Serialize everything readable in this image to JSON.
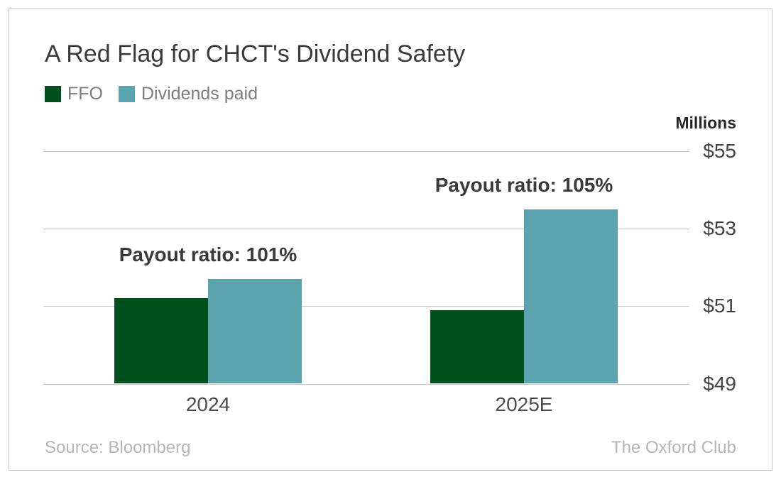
{
  "title": "A Red Flag for CHCT's Dividend Safety",
  "legend": {
    "items": [
      {
        "label": "FFO",
        "color": "#00501e"
      },
      {
        "label": "Dividends paid",
        "color": "#5ba4ad"
      }
    ]
  },
  "axis": {
    "unit_label": "Millions",
    "tick_labels": [
      "$55",
      "$53",
      "$51",
      "$49"
    ],
    "tick_values": [
      55,
      53,
      51,
      49
    ]
  },
  "footer": {
    "source": "Source: Bloomberg",
    "brand": "The Oxford Club"
  },
  "chart_data": {
    "type": "bar",
    "title": "A Red Flag for CHCT's Dividend Safety",
    "categories": [
      "2024",
      "2025E"
    ],
    "series": [
      {
        "name": "FFO",
        "color": "#00501e",
        "values": [
          51.2,
          50.9
        ]
      },
      {
        "name": "Dividends paid",
        "color": "#5ba4ad",
        "values": [
          51.7,
          53.5
        ]
      }
    ],
    "annotations": [
      "Payout ratio: 101%",
      "Payout ratio: 105%"
    ],
    "xlabel": "",
    "ylabel": "Millions",
    "ylim": [
      49,
      55
    ],
    "yticks": [
      55,
      53,
      51,
      49
    ],
    "grid": true,
    "legend_position": "top-left",
    "baseline_value": 49
  }
}
